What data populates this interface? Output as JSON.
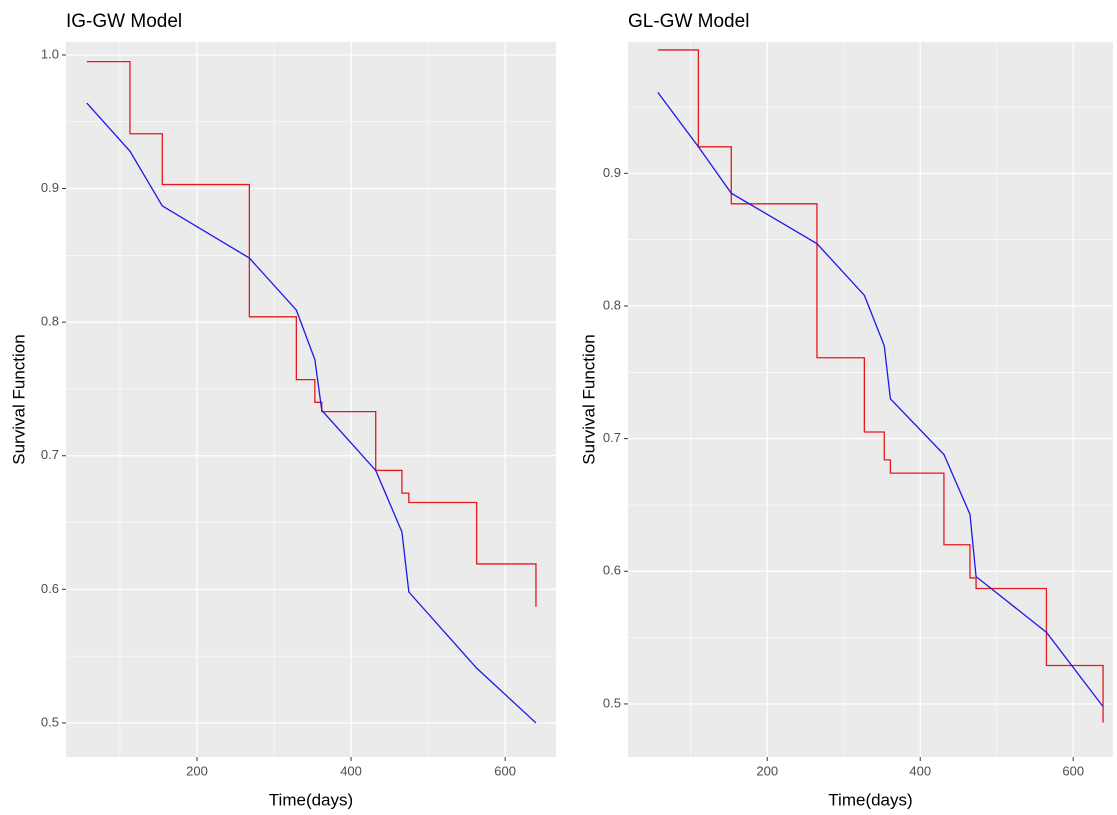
{
  "chart_data": [
    {
      "type": "line",
      "title": "IG-GW Model",
      "x_label": "Time(days)",
      "y_label": "Survival Function",
      "xlim": [
        30,
        666
      ],
      "ylim": [
        0.4745,
        1.0097
      ],
      "xticks": [
        200,
        400,
        600
      ],
      "yticks": [
        0.5,
        0.6,
        0.7,
        0.8,
        0.9,
        {
          "value": 1.0,
          "label": "1.0"
        }
      ],
      "grid": true,
      "series": [
        {
          "color": "#e41a1c",
          "step": "post",
          "x": [
            57,
            113,
            155,
            268,
            329,
            353,
            362,
            432,
            466,
            475,
            563,
            640
          ],
          "values": [
            0.995,
            0.941,
            0.903,
            0.804,
            0.757,
            0.74,
            0.733,
            0.689,
            0.672,
            0.665,
            0.619,
            0.587
          ]
        },
        {
          "color": "#1a1ae6",
          "x": [
            57,
            113,
            155,
            268,
            329,
            353,
            362,
            432,
            466,
            475,
            563,
            640
          ],
          "values": [
            0.964,
            0.928,
            0.887,
            0.848,
            0.809,
            0.772,
            0.734,
            0.689,
            0.643,
            0.598,
            0.541,
            0.5
          ]
        }
      ]
    },
    {
      "type": "line",
      "title": "GL-GW Model",
      "x_label": "Time(days)",
      "y_label": "Survival Function",
      "xlim": [
        18,
        652
      ],
      "ylim": [
        0.46,
        0.999
      ],
      "xticks": [
        200,
        400,
        600
      ],
      "yticks": [
        0.5,
        0.6,
        0.7,
        0.8,
        0.9
      ],
      "grid": true,
      "series": [
        {
          "color": "#e41a1c",
          "step": "post",
          "x": [
            57,
            110,
            153,
            265,
            327,
            353,
            361,
            431,
            465,
            473,
            565,
            639
          ],
          "values": [
            0.993,
            0.92,
            0.877,
            0.761,
            0.705,
            0.684,
            0.674,
            0.62,
            0.595,
            0.587,
            0.529,
            0.486
          ]
        },
        {
          "color": "#1a1ae6",
          "x": [
            57,
            110,
            153,
            265,
            327,
            353,
            361,
            431,
            465,
            473,
            565,
            639
          ],
          "values": [
            0.961,
            0.92,
            0.885,
            0.847,
            0.808,
            0.77,
            0.73,
            0.688,
            0.643,
            0.596,
            0.554,
            0.498
          ]
        }
      ]
    }
  ]
}
